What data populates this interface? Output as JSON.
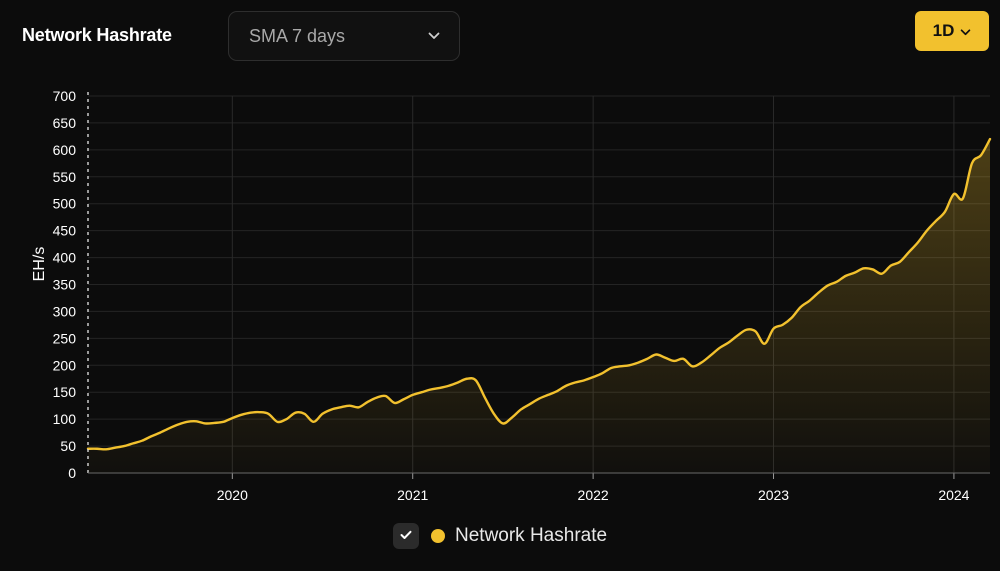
{
  "header": {
    "title": "Network Hashrate",
    "average_select": "SMA 7 days",
    "interval_button": "1D"
  },
  "legend": {
    "label": "Network Hashrate",
    "checked": true
  },
  "colors": {
    "accent": "#f2c12e",
    "background": "#0c0c0c",
    "grid": "#2a2a2a"
  },
  "icons": {
    "select_chevron": "chevron-down-icon",
    "button_chevron": "chevron-down-icon",
    "legend_check": "check-icon"
  },
  "chart_data": {
    "type": "area",
    "title": "Network Hashrate",
    "ylabel": "EH/s",
    "xlabel": "",
    "ylim": [
      0,
      700
    ],
    "xlim": [
      2019.2,
      2024.2
    ],
    "y_ticks": [
      0,
      50,
      100,
      150,
      200,
      250,
      300,
      350,
      400,
      450,
      500,
      550,
      600,
      650,
      700
    ],
    "x_ticks": [
      {
        "value": 2020,
        "label": "2020"
      },
      {
        "value": 2021,
        "label": "2021"
      },
      {
        "value": 2022,
        "label": "2022"
      },
      {
        "value": 2023,
        "label": "2023"
      },
      {
        "value": 2024,
        "label": "2024"
      }
    ],
    "grid": true,
    "legend_position": "bottom",
    "series": [
      {
        "name": "Network Hashrate",
        "color": "#f2c12e",
        "points": [
          [
            2019.2,
            45
          ],
          [
            2019.25,
            45
          ],
          [
            2019.3,
            44
          ],
          [
            2019.35,
            47
          ],
          [
            2019.4,
            50
          ],
          [
            2019.45,
            55
          ],
          [
            2019.5,
            60
          ],
          [
            2019.55,
            68
          ],
          [
            2019.6,
            75
          ],
          [
            2019.65,
            83
          ],
          [
            2019.7,
            90
          ],
          [
            2019.75,
            95
          ],
          [
            2019.8,
            96
          ],
          [
            2019.85,
            92
          ],
          [
            2019.9,
            93
          ],
          [
            2019.95,
            95
          ],
          [
            2020.0,
            102
          ],
          [
            2020.05,
            108
          ],
          [
            2020.1,
            112
          ],
          [
            2020.15,
            113
          ],
          [
            2020.2,
            110
          ],
          [
            2020.25,
            95
          ],
          [
            2020.3,
            100
          ],
          [
            2020.35,
            112
          ],
          [
            2020.4,
            110
          ],
          [
            2020.45,
            95
          ],
          [
            2020.5,
            110
          ],
          [
            2020.55,
            118
          ],
          [
            2020.6,
            122
          ],
          [
            2020.65,
            125
          ],
          [
            2020.7,
            122
          ],
          [
            2020.75,
            132
          ],
          [
            2020.8,
            140
          ],
          [
            2020.85,
            143
          ],
          [
            2020.9,
            130
          ],
          [
            2020.95,
            137
          ],
          [
            2021.0,
            145
          ],
          [
            2021.05,
            150
          ],
          [
            2021.1,
            155
          ],
          [
            2021.15,
            158
          ],
          [
            2021.2,
            162
          ],
          [
            2021.25,
            168
          ],
          [
            2021.3,
            175
          ],
          [
            2021.35,
            172
          ],
          [
            2021.4,
            140
          ],
          [
            2021.45,
            110
          ],
          [
            2021.5,
            92
          ],
          [
            2021.55,
            103
          ],
          [
            2021.6,
            118
          ],
          [
            2021.65,
            128
          ],
          [
            2021.7,
            138
          ],
          [
            2021.75,
            145
          ],
          [
            2021.8,
            152
          ],
          [
            2021.85,
            162
          ],
          [
            2021.9,
            168
          ],
          [
            2021.95,
            172
          ],
          [
            2022.0,
            178
          ],
          [
            2022.05,
            185
          ],
          [
            2022.1,
            195
          ],
          [
            2022.15,
            198
          ],
          [
            2022.2,
            200
          ],
          [
            2022.25,
            205
          ],
          [
            2022.3,
            212
          ],
          [
            2022.35,
            220
          ],
          [
            2022.4,
            214
          ],
          [
            2022.45,
            208
          ],
          [
            2022.5,
            212
          ],
          [
            2022.55,
            198
          ],
          [
            2022.6,
            205
          ],
          [
            2022.65,
            218
          ],
          [
            2022.7,
            232
          ],
          [
            2022.75,
            242
          ],
          [
            2022.8,
            255
          ],
          [
            2022.85,
            266
          ],
          [
            2022.9,
            263
          ],
          [
            2022.95,
            240
          ],
          [
            2023.0,
            268
          ],
          [
            2023.05,
            275
          ],
          [
            2023.1,
            288
          ],
          [
            2023.15,
            308
          ],
          [
            2023.2,
            320
          ],
          [
            2023.25,
            335
          ],
          [
            2023.3,
            348
          ],
          [
            2023.35,
            355
          ],
          [
            2023.4,
            366
          ],
          [
            2023.45,
            372
          ],
          [
            2023.5,
            380
          ],
          [
            2023.55,
            378
          ],
          [
            2023.6,
            370
          ],
          [
            2023.65,
            385
          ],
          [
            2023.7,
            392
          ],
          [
            2023.75,
            410
          ],
          [
            2023.8,
            428
          ],
          [
            2023.85,
            450
          ],
          [
            2023.9,
            468
          ],
          [
            2023.95,
            485
          ],
          [
            2024.0,
            518
          ],
          [
            2024.05,
            510
          ],
          [
            2024.1,
            575
          ],
          [
            2024.15,
            590
          ],
          [
            2024.2,
            620
          ]
        ]
      }
    ]
  }
}
